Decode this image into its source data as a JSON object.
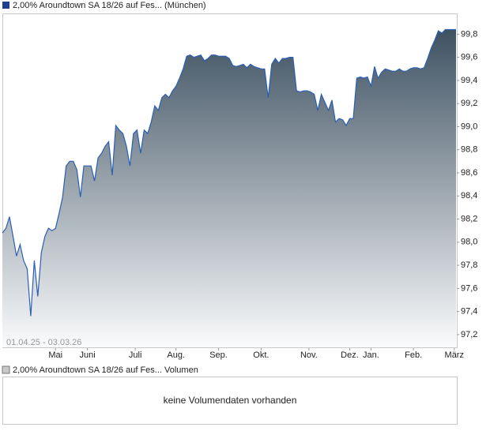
{
  "chart_data": {
    "type": "area",
    "date_range": "01.04.25 - 03.03.26",
    "series": [
      {
        "name": "2,00% Aroundtown SA 18/26 auf Fes... (München)",
        "color": "#2a5fb4",
        "legend_color": "#1f3f8f",
        "values": [
          98.08,
          98.12,
          98.22,
          98.05,
          97.88,
          97.98,
          97.84,
          97.77,
          97.36,
          97.84,
          97.53,
          97.91,
          98.05,
          98.12,
          98.1,
          98.12,
          98.25,
          98.39,
          98.66,
          98.7,
          98.7,
          98.63,
          98.39,
          98.66,
          98.66,
          98.66,
          98.53,
          98.73,
          98.77,
          98.83,
          98.87,
          98.58,
          99.01,
          98.97,
          98.94,
          98.83,
          98.66,
          98.94,
          98.97,
          98.77,
          98.97,
          98.94,
          99.04,
          99.18,
          99.14,
          99.25,
          99.28,
          99.25,
          99.31,
          99.35,
          99.42,
          99.5,
          99.61,
          99.62,
          99.6,
          99.61,
          99.62,
          99.57,
          99.59,
          99.62,
          99.62,
          99.61,
          99.61,
          99.61,
          99.59,
          99.53,
          99.52,
          99.53,
          99.54,
          99.51,
          99.54,
          99.52,
          99.51,
          99.5,
          99.5,
          99.25,
          99.54,
          99.59,
          99.55,
          99.59,
          99.59,
          99.6,
          99.6,
          99.31,
          99.3,
          99.31,
          99.31,
          99.3,
          99.28,
          99.14,
          99.28,
          99.21,
          99.14,
          99.23,
          99.04,
          99.07,
          99.06,
          99.01,
          99.07,
          99.07,
          99.42,
          99.43,
          99.42,
          99.43,
          99.35,
          99.52,
          99.42,
          99.47,
          99.5,
          99.49,
          99.48,
          99.48,
          99.5,
          99.48,
          99.48,
          99.5,
          99.51,
          99.51,
          99.5,
          99.51,
          99.59,
          99.68,
          99.75,
          99.83,
          99.81,
          99.84,
          99.84,
          99.84,
          99.84
        ]
      }
    ],
    "xlim": [
      0,
      128
    ],
    "xticks": [
      {
        "value": 15,
        "label": "Mai"
      },
      {
        "value": 24,
        "label": "Juni"
      },
      {
        "value": 37.5,
        "label": "Juli"
      },
      {
        "value": 49,
        "label": "Aug."
      },
      {
        "value": 61,
        "label": "Sep."
      },
      {
        "value": 73,
        "label": "Okt."
      },
      {
        "value": 86.5,
        "label": "Nov."
      },
      {
        "value": 98,
        "label": "Dez."
      },
      {
        "value": 104,
        "label": "Jan."
      },
      {
        "value": 116,
        "label": "Feb."
      },
      {
        "value": 127.5,
        "label": "März"
      }
    ],
    "ylim": [
      97.09,
      99.98
    ],
    "yticks": [
      {
        "value": 97.2,
        "label": "97,2"
      },
      {
        "value": 97.4,
        "label": "97,4"
      },
      {
        "value": 97.6,
        "label": "97,6"
      },
      {
        "value": 97.8,
        "label": "97,8"
      },
      {
        "value": 98.0,
        "label": "98,0"
      },
      {
        "value": 98.2,
        "label": "98,2"
      },
      {
        "value": 98.4,
        "label": "98,4"
      },
      {
        "value": 98.6,
        "label": "98,6"
      },
      {
        "value": 98.8,
        "label": "98,8"
      },
      {
        "value": 99.0,
        "label": "99,0"
      },
      {
        "value": 99.2,
        "label": "99,2"
      },
      {
        "value": 99.4,
        "label": "99,4"
      },
      {
        "value": 99.6,
        "label": "99,6"
      },
      {
        "value": 99.8,
        "label": "99,8"
      }
    ]
  },
  "volume": {
    "legend": "2,00% Aroundtown SA 18/26 auf Fes... Volumen",
    "legend_color": "#c8c8c8",
    "message": "keine Volumendaten vorhanden"
  }
}
